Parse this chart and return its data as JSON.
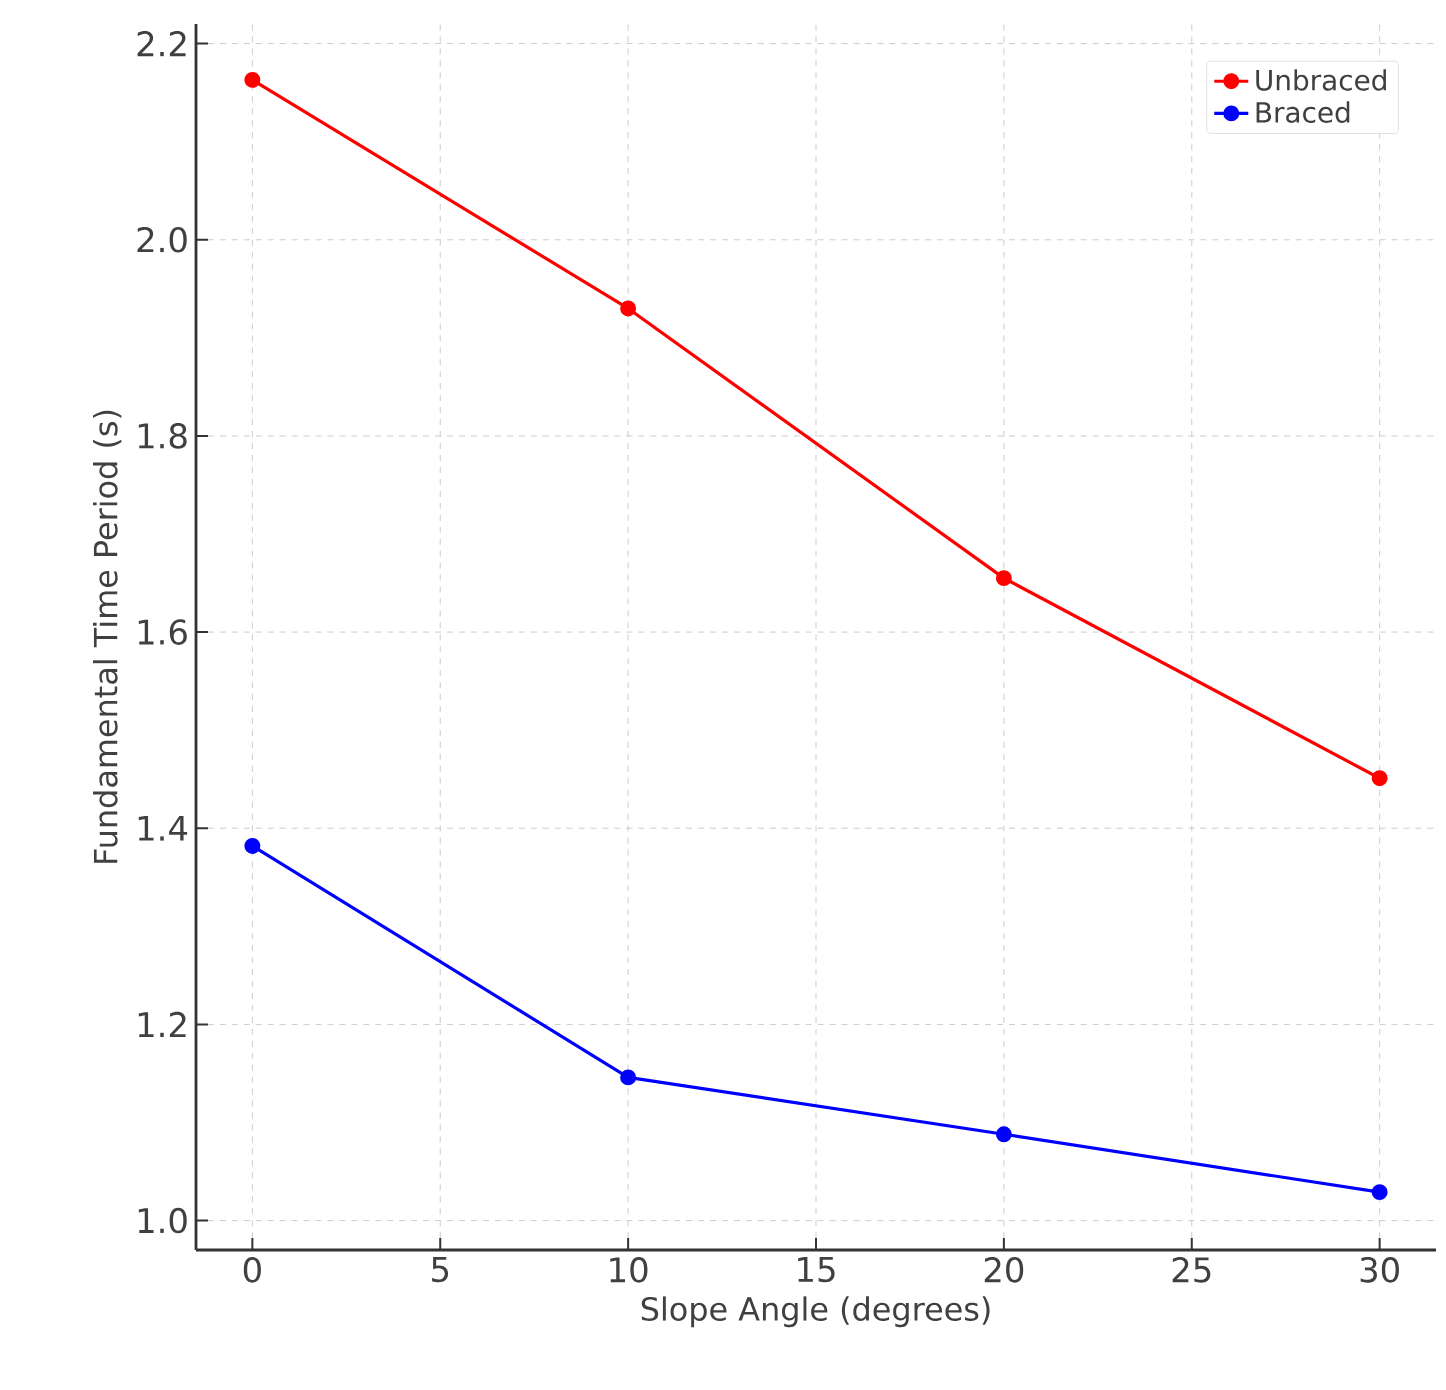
{
  "chart_data": {
    "type": "line",
    "xlabel": "Slope Angle (degrees)",
    "ylabel": "Fundamental Time Period (s)",
    "x": [
      0,
      10,
      20,
      30
    ],
    "series": [
      {
        "name": "Unbraced",
        "color": "#ff0000",
        "values": [
          2.163,
          1.93,
          1.655,
          1.451
        ]
      },
      {
        "name": "Braced",
        "color": "#0000ff",
        "values": [
          1.382,
          1.146,
          1.088,
          1.029
        ]
      }
    ],
    "xlim": [
      -1.5,
      31.5
    ],
    "ylim": [
      0.97,
      2.22
    ],
    "xticks": [
      0,
      5,
      10,
      15,
      20,
      25,
      30
    ],
    "yticks": [
      {
        "value": 1.0,
        "label": "1.0"
      },
      {
        "value": 1.2,
        "label": "1.2"
      },
      {
        "value": 1.4,
        "label": "1.4"
      },
      {
        "value": 1.6,
        "label": "1.6"
      },
      {
        "value": 1.8,
        "label": "1.8"
      },
      {
        "value": 2.0,
        "label": "2.0"
      },
      {
        "value": 2.2,
        "label": "2.2"
      }
    ],
    "grid": true,
    "legend": "top right",
    "marker": "circle",
    "line_style": "solid"
  }
}
